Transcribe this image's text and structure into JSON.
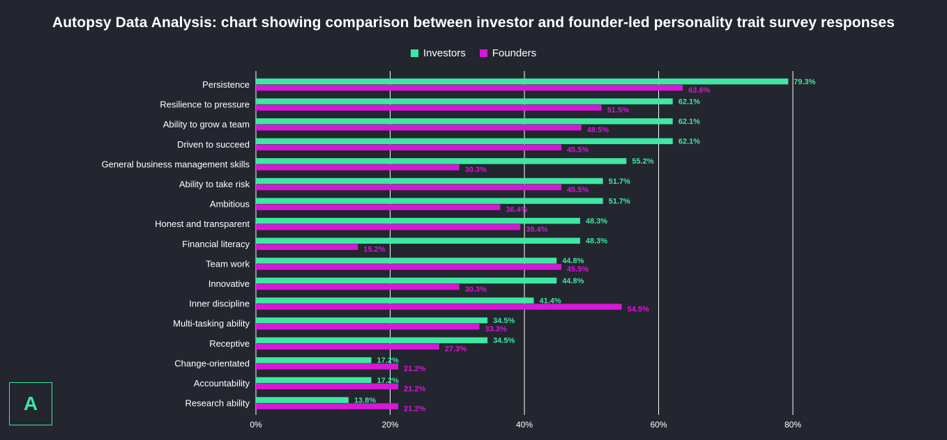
{
  "title": "Autopsy Data Analysis: chart showing comparison between investor and founder-led personality trait survey responses",
  "logo_text": "A",
  "colors": {
    "background": "#23262f",
    "investors": "#3ee8a2",
    "founders": "#d519d5",
    "gridline": "#ffffff",
    "text": "#ffffff"
  },
  "legend": {
    "position": "top-center",
    "items": [
      "Investors",
      "Founders"
    ]
  },
  "chart_data": {
    "type": "bar",
    "orientation": "horizontal",
    "categories": [
      "Persistence",
      "Resilience to pressure",
      "Ability to grow a team",
      "Driven to succeed",
      "General business management skills",
      "Ability to take risk",
      "Ambitious",
      "Honest and transparent",
      "Financial literacy",
      "Team work",
      "Innovative",
      "Inner discipline",
      "Multi-tasking ability",
      "Receptive",
      "Change-orientated",
      "Accountability",
      "Research ability"
    ],
    "series": [
      {
        "name": "Investors",
        "values": [
          79.3,
          62.1,
          62.1,
          62.1,
          55.2,
          51.7,
          51.7,
          48.3,
          48.3,
          44.8,
          44.8,
          41.4,
          34.5,
          34.5,
          17.2,
          17.2,
          13.8
        ],
        "labels": [
          "79.3%",
          "62.1%",
          "62.1%",
          "62.1%",
          "55.2%",
          "51.7%",
          "51.7%",
          "48.3%",
          "48.3%",
          "44.8%",
          "44.8%",
          "41.4%",
          "34.5%",
          "34.5%",
          "17.2%",
          "17.2%",
          "13.8%"
        ]
      },
      {
        "name": "Founders",
        "values": [
          63.6,
          51.5,
          48.5,
          45.5,
          30.3,
          45.5,
          36.4,
          39.4,
          15.2,
          45.5,
          30.3,
          54.5,
          33.3,
          27.3,
          21.2,
          21.2,
          21.2
        ],
        "labels": [
          "63.6%",
          "51.5%",
          "48.5%",
          "45.5%",
          "30.3%",
          "45.5%",
          "36.4%",
          "39.4%",
          "15.2%",
          "45.5%",
          "30.3%",
          "54.5%",
          "33.3%",
          "27.3%",
          "21.2%",
          "21.2%",
          "21.2%"
        ]
      }
    ],
    "xlim": [
      0,
      80
    ],
    "xticks": [
      0,
      20,
      40,
      60,
      80
    ],
    "xtick_labels": [
      "0%",
      "20%",
      "40%",
      "60%",
      "80%"
    ],
    "grid": true,
    "xlabel": "",
    "ylabel": ""
  }
}
